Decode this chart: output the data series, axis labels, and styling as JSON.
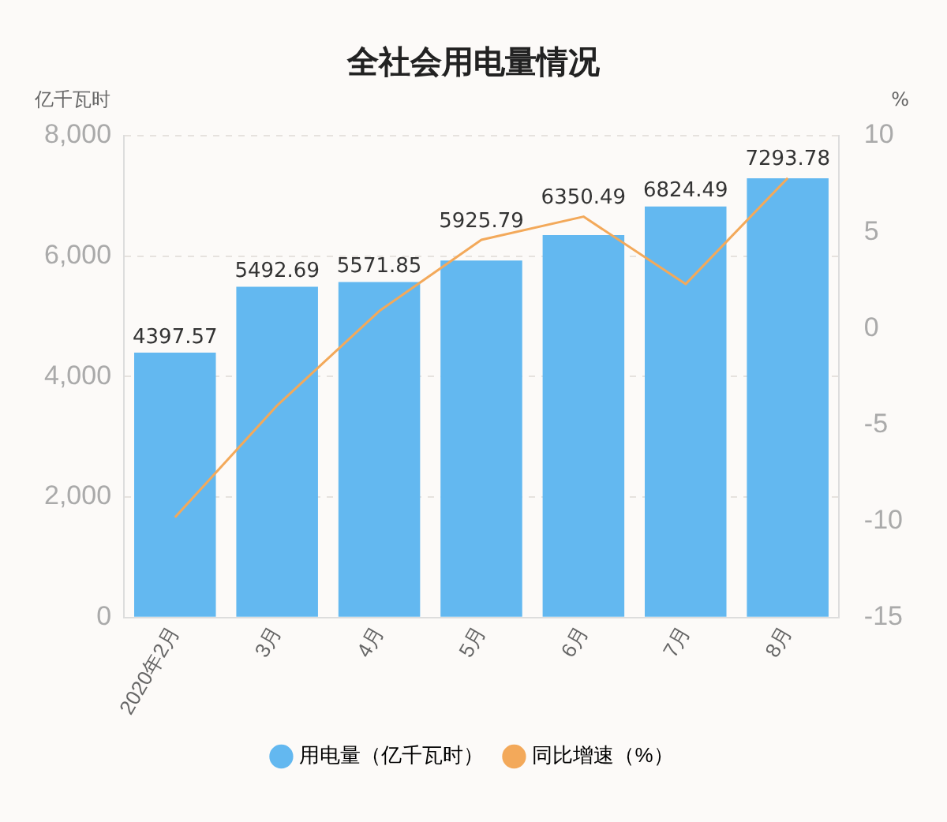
{
  "chart_data": {
    "type": "bar",
    "title": "全社会用电量情况",
    "ylabel": "亿千瓦时",
    "y2label": "%",
    "categories": [
      "2020年2月",
      "3月",
      "4月",
      "5月",
      "6月",
      "7月",
      "8月"
    ],
    "series": [
      {
        "name": "用电量（亿千瓦时）",
        "color": "#63b8f0",
        "values": [
          4397.57,
          5492.69,
          5571.85,
          5925.79,
          6350.49,
          6824.49,
          7293.78
        ],
        "value_labels": [
          "4397.57",
          "5492.69",
          "5571.85",
          "5925.79",
          "6350.49",
          "6824.49",
          "7293.78"
        ]
      },
      {
        "name": "同比增速（%）",
        "type": "line",
        "axis": "y2",
        "color": "#f3a95a",
        "values": [
          -9.8,
          -4.0,
          0.9,
          4.6,
          5.8,
          2.3,
          7.8
        ]
      }
    ],
    "ylim": [
      0,
      8000
    ],
    "yticks": [
      {
        "value": 0,
        "label": "0"
      },
      {
        "value": 2000,
        "label": "2,000"
      },
      {
        "value": 4000,
        "label": "4,000"
      },
      {
        "value": 6000,
        "label": "6,000"
      },
      {
        "value": 8000,
        "label": "8,000"
      }
    ],
    "y2lim": [
      -15,
      10
    ],
    "y2ticks": [
      -15,
      -10,
      -5,
      0,
      5,
      10
    ],
    "grid": "y",
    "legend": "bottom",
    "marker": "none"
  }
}
